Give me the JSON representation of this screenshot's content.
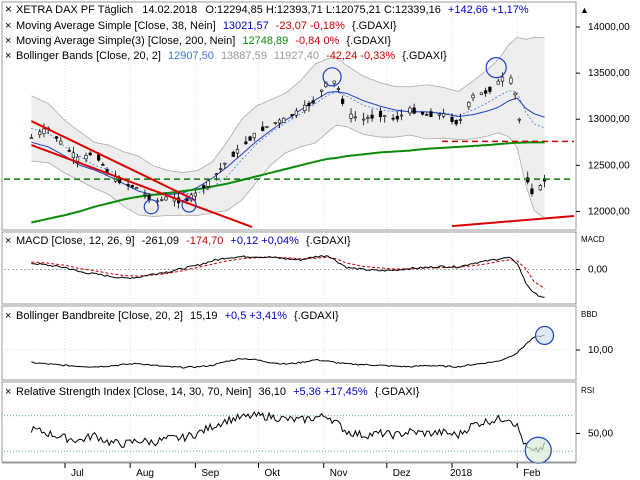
{
  "colors": {
    "candle_up": "#000000",
    "candle_down": "#000000",
    "sma38": "#1f3fbf",
    "sma200": "#0a8a0a",
    "bollinger_band": "#aaaaaa",
    "bollinger_mid": "#3a7bd5",
    "trend_line": "#dd0000",
    "support_dashed": "#0a7a0a",
    "resistance_dashed": "#cc0000",
    "macd_line": "#000000",
    "signal_line": "#cc0000",
    "pos_value": "#0000cc",
    "neg_value": "#cc0000"
  },
  "icons": {
    "close_icon": "×",
    "scroll_up_icon": "▲"
  },
  "header": {
    "instrument": "XETRA DAX PF Täglich",
    "date": "14.02.2018",
    "ohlc": "O:12294,85 H:12393,71 L:12075,21 C:12339,16",
    "change": "+142,66 +1,17%"
  },
  "legend": [
    {
      "label": "Moving Average Simple [Close, 38, Nein]",
      "value": "13021,57",
      "change": "-23,07 -0,18%",
      "suffix": "{.GDAXI}"
    },
    {
      "label": "Moving Average Simple(3) [Close, 200, Nein]",
      "value": "12748,89",
      "change": "-0,84 0%",
      "suffix": "{.GDAXI}"
    },
    {
      "label": "Bollinger Bands [Close, 20, 2]",
      "value": "12907,50",
      "extra1": "13887,59",
      "extra2": "11927,40",
      "change": "-42,24 -0,33%",
      "suffix": "{.GDAXI}"
    }
  ],
  "panels": [
    {
      "id": "price",
      "title": "",
      "y_ticks": [
        "14000,00",
        "13500,00",
        "13000,00",
        "12500,00",
        "12000,00"
      ]
    },
    {
      "id": "macd",
      "tag": "MACD",
      "title": "MACD [Close, 12, 26, 9]",
      "value": "-261,09",
      "extra": "-174,70",
      "change": "+0,12 +0,04%",
      "suffix": "{.GDAXI}",
      "y_ticks": [
        "0,00"
      ]
    },
    {
      "id": "bbw",
      "tag": "BBD",
      "title": "Bollinger Bandbreite [Close, 20, 2]",
      "value": "15,19",
      "change": "+0,5 +3,41%",
      "suffix": "{.GDAXI}",
      "y_ticks": [
        "10,00"
      ]
    },
    {
      "id": "rsi",
      "tag": "RSI",
      "title": "Relative Strength Index [Close, 14, 30, 70, Nein]",
      "value": "36,10",
      "change": "+5,36 +17,45%",
      "suffix": "{.GDAXI}",
      "y_ticks": [
        "50,00"
      ]
    }
  ],
  "x_labels": [
    "Jul",
    "Aug",
    "Sep",
    "Okt",
    "Nov",
    "Dez",
    "2018",
    "Feb"
  ],
  "chart_data": [
    {
      "type": "line",
      "subtype": "candlestick",
      "ylim": [
        11820,
        14250
      ],
      "x_ticks": [
        "Jul",
        "Aug",
        "Sep",
        "Okt",
        "Nov",
        "Dez",
        "2018",
        "Feb"
      ],
      "series": [
        {
          "name": "XETRA DAX PF Täglich",
          "x": [
            "2017-06-15",
            "2017-06-23",
            "2017-07-01",
            "2017-07-08",
            "2017-07-15",
            "2017-07-22",
            "2017-07-29",
            "2017-08-05",
            "2017-08-12",
            "2017-08-19",
            "2017-08-26",
            "2017-09-02",
            "2017-09-09",
            "2017-09-16",
            "2017-09-23",
            "2017-09-30",
            "2017-10-07",
            "2017-10-14",
            "2017-10-21",
            "2017-10-28",
            "2017-11-03",
            "2017-11-07",
            "2017-11-12",
            "2017-11-20",
            "2017-11-28",
            "2017-12-05",
            "2017-12-12",
            "2017-12-20",
            "2017-12-28",
            "2018-01-04",
            "2018-01-11",
            "2018-01-18",
            "2018-01-23",
            "2018-01-28",
            "2018-02-01",
            "2018-02-05",
            "2018-02-09",
            "2018-02-14"
          ],
          "values": [
            12800,
            12900,
            12700,
            12550,
            12650,
            12400,
            12300,
            12250,
            12100,
            12150,
            12100,
            12200,
            12350,
            12550,
            12700,
            12850,
            12950,
            13000,
            13100,
            13200,
            13420,
            13400,
            13050,
            13000,
            13050,
            13000,
            13100,
            13050,
            13050,
            12950,
            13250,
            13300,
            13400,
            13500,
            13200,
            12400,
            12150,
            12339
          ]
        },
        {
          "name": "Moving Average Simple [Close, 38, Nein]",
          "values": [
            12750,
            12700,
            12600,
            12500,
            12450,
            12380,
            12300,
            12220,
            12180,
            12180,
            12200,
            12260,
            12360,
            12480,
            12620,
            12760,
            12880,
            12990,
            13100,
            13210,
            13290,
            13300,
            13280,
            13200,
            13140,
            13100,
            13080,
            13080,
            13060,
            13030,
            13050,
            13090,
            13130,
            13200,
            13230,
            13120,
            13060,
            13022
          ]
        },
        {
          "name": "Moving Average Simple(3) [Close, 200, Nein]",
          "values": [
            11880,
            11920,
            11960,
            12000,
            12050,
            12090,
            12130,
            12160,
            12180,
            12200,
            12220,
            12240,
            12270,
            12300,
            12340,
            12380,
            12420,
            12460,
            12500,
            12540,
            12570,
            12580,
            12600,
            12620,
            12640,
            12650,
            12660,
            12680,
            12690,
            12700,
            12710,
            12720,
            12730,
            12740,
            12745,
            12748,
            12749,
            12749
          ]
        },
        {
          "name": "Bollinger Bands [Close, 20, 2]",
          "values": [
            12900,
            12850,
            12700,
            12600,
            12500,
            12450,
            12350,
            12280,
            12220,
            12200,
            12190,
            12200,
            12260,
            12380,
            12560,
            12730,
            12860,
            12960,
            13060,
            13170,
            13260,
            13300,
            13250,
            13150,
            13100,
            13080,
            13090,
            13080,
            13070,
            13040,
            13100,
            13180,
            13250,
            13310,
            13290,
            13080,
            12950,
            12907
          ]
        }
      ]
    },
    {
      "type": "line",
      "title": "MACD [Close, 12, 26, 9]",
      "ylim": [
        -300,
        200
      ],
      "series": [
        {
          "name": "MACD",
          "values": [
            60,
            40,
            20,
            -20,
            -40,
            -60,
            -80,
            -70,
            -40,
            -20,
            10,
            40,
            80,
            110,
            120,
            120,
            115,
            100,
            90,
            120,
            130,
            80,
            20,
            0,
            -10,
            -5,
            10,
            20,
            30,
            25,
            60,
            80,
            100,
            110,
            60,
            -120,
            -220,
            -261
          ]
        },
        {
          "name": "Signal",
          "values": [
            70,
            60,
            40,
            10,
            -10,
            -35,
            -55,
            -60,
            -50,
            -35,
            -10,
            20,
            50,
            80,
            100,
            110,
            115,
            110,
            100,
            105,
            115,
            100,
            60,
            30,
            15,
            5,
            8,
            15,
            20,
            22,
            35,
            55,
            75,
            90,
            80,
            10,
            -110,
            -175
          ]
        }
      ]
    },
    {
      "type": "line",
      "title": "Bollinger Bandbreite [Close, 20, 2]",
      "ylim": [
        0,
        20
      ],
      "series": [
        {
          "name": "BBD",
          "values": [
            5.5,
            5.0,
            4.5,
            4.2,
            4.0,
            4.3,
            4.8,
            5.2,
            4.5,
            4.0,
            3.8,
            4.0,
            4.5,
            6.0,
            7.0,
            6.5,
            5.5,
            5.0,
            5.5,
            6.5,
            6.0,
            5.5,
            5.0,
            4.8,
            4.5,
            4.2,
            4.0,
            4.5,
            4.2,
            4.0,
            4.8,
            5.5,
            6.0,
            7.5,
            9.0,
            12.0,
            14.5,
            15.19
          ]
        }
      ]
    },
    {
      "type": "line",
      "title": "Relative Strength Index [Close, 14, 30, 70, Nein]",
      "ylim": [
        20,
        90
      ],
      "series": [
        {
          "name": "RSI",
          "values": [
            55,
            50,
            45,
            42,
            48,
            40,
            38,
            42,
            40,
            44,
            45,
            50,
            58,
            65,
            68,
            70,
            69,
            66,
            65,
            68,
            70,
            62,
            52,
            48,
            50,
            48,
            52,
            50,
            51,
            48,
            60,
            64,
            66,
            68,
            58,
            35,
            28,
            36.1
          ]
        }
      ]
    }
  ]
}
